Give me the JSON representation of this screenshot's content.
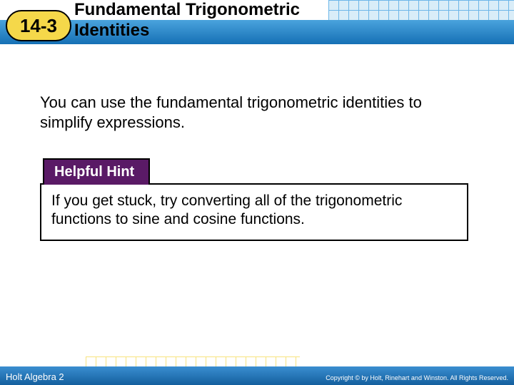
{
  "header": {
    "lesson_number": "14-3",
    "title_line1": "Fundamental Trigonometric",
    "title_line2": "Identities",
    "badge_bg": "#f5d84a",
    "bar_gradient_top": "#4aa3dd",
    "bar_gradient_bottom": "#1570b5"
  },
  "body": {
    "paragraph": "You can use the fundamental trigonometric identities to simplify expressions."
  },
  "hint": {
    "tab_label": "Helpful Hint",
    "tab_bg": "#5a1a66",
    "tab_color": "#ffffff",
    "text": "If you get stuck, try converting all of the trigonometric functions to sine and cosine functions."
  },
  "footer": {
    "book": "Holt Algebra 2",
    "copyright": "Copyright © by Holt, Rinehart and Winston. All Rights Reserved.",
    "bar_gradient_top": "#3a8ed0",
    "bar_gradient_bottom": "#145f9e"
  },
  "grid": {
    "cell_size": 14,
    "top_line_color": "#6db6e8",
    "top_bg": "#d9edf8",
    "bottom_line_color": "#f5d84a"
  }
}
